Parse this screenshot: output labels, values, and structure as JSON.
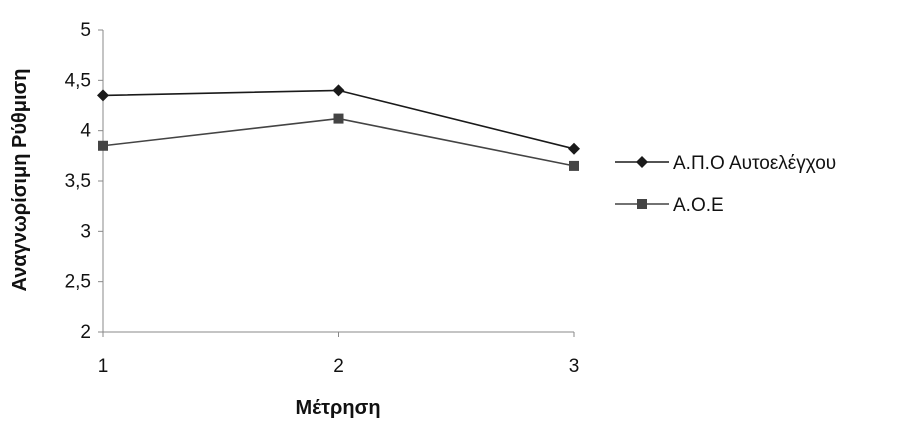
{
  "chart_data": {
    "type": "line",
    "title": "",
    "xlabel": "Μέτρηση",
    "ylabel": "Αναγνωρίσιμη Ρύθμιση",
    "categories": [
      "1",
      "2",
      "3"
    ],
    "ylim": [
      2,
      5
    ],
    "yticks": [
      "2",
      "2,5",
      "3",
      "3,5",
      "4",
      "4,5",
      "5"
    ],
    "grid": false,
    "legend_position": "right",
    "series": [
      {
        "name": "Α.Π.Ο Αυτοελέγχου",
        "values": [
          4.35,
          4.4,
          3.82
        ],
        "marker": "diamond",
        "color": "#1a1a1a"
      },
      {
        "name": "Α.Ο.Ε",
        "values": [
          3.85,
          4.12,
          3.65
        ],
        "marker": "square",
        "color": "#444444"
      }
    ]
  }
}
